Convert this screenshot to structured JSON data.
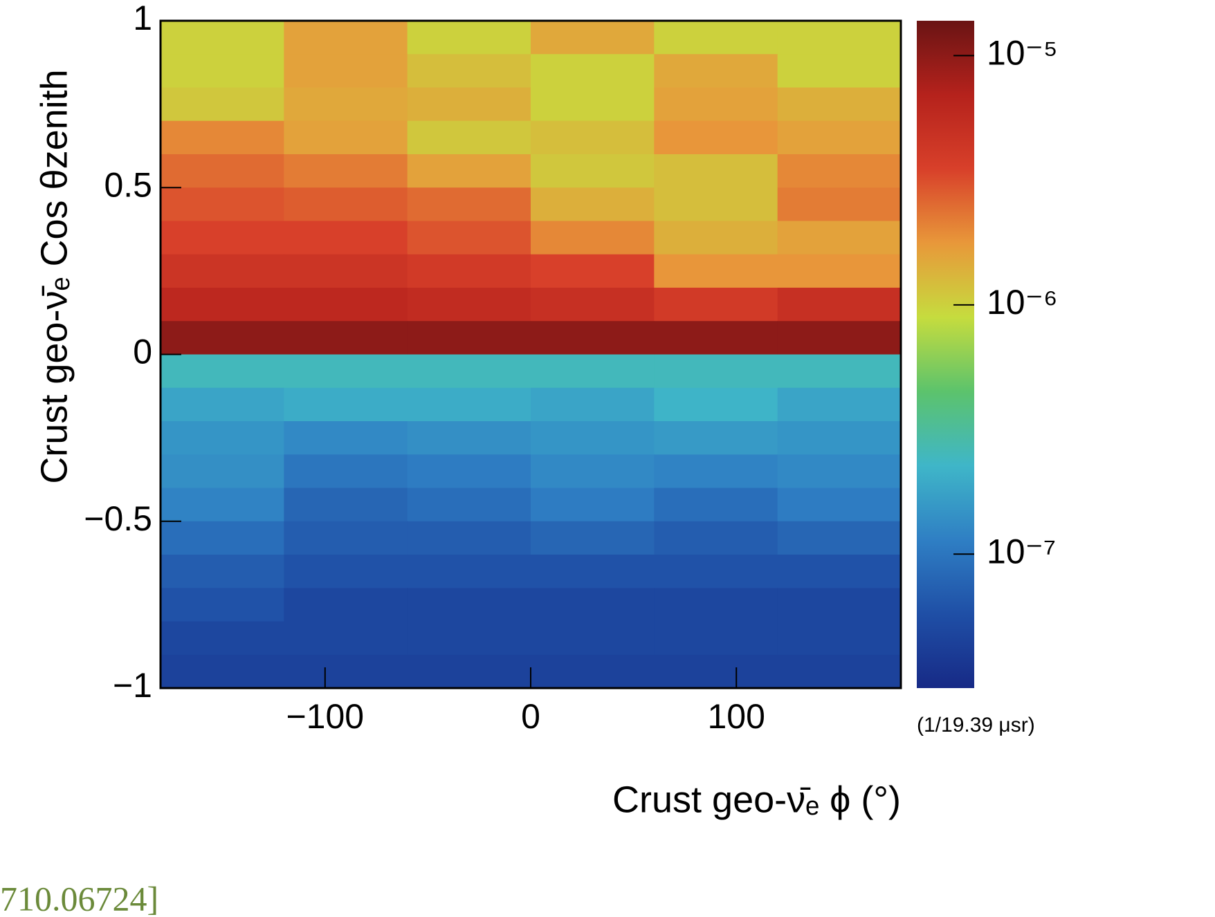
{
  "chart_data": {
    "type": "heatmap",
    "xlabel": "Crust geo-ν̄ₑ ϕ (°)",
    "ylabel": "Crust geo-ν̄ₑ Cos θzenith",
    "zlabel": "(1/19.39 μsr)",
    "annotation": "710.06724]",
    "xlim": [
      -180,
      180
    ],
    "xticks": [
      {
        "value": -100,
        "label": "−100"
      },
      0,
      100
    ],
    "ylim": [
      -1,
      1
    ],
    "yticks": [
      {
        "value": -1,
        "label": "−1"
      },
      {
        "value": -0.5,
        "label": "−0.5"
      },
      0,
      0.5,
      1
    ],
    "zlim": [
      2.9e-08,
      1.38e-05
    ],
    "zscale": "log",
    "zticks": [
      {
        "value": 1e-07,
        "label": "10⁻⁷"
      },
      {
        "value": 1e-06,
        "label": "10⁻⁶"
      },
      {
        "value": 1e-05,
        "label": "10⁻⁵"
      }
    ],
    "colormap": [
      "#172a86",
      "#1f4fa6",
      "#2f7fc4",
      "#3fb6c8",
      "#5cc36c",
      "#c6dc3e",
      "#e8983a",
      "#d8402a",
      "#b5221c",
      "#6a1414"
    ],
    "xbins": [
      -180,
      -120,
      -60,
      0,
      60,
      120,
      180
    ],
    "ybins": [
      1,
      0.9,
      0.8,
      0.7,
      0.6,
      0.5,
      0.4,
      0.3,
      0.2,
      0.1,
      0,
      -0.1,
      -0.2,
      -0.3,
      -0.4,
      -0.5,
      -0.6,
      -0.7,
      -0.8,
      -0.9,
      -1
    ],
    "z": [
      [
        1e-06,
        1.6e-06,
        1e-06,
        1.5e-06,
        1e-06,
        1e-06
      ],
      [
        1e-06,
        1.6e-06,
        1.2e-06,
        1e-06,
        1.5e-06,
        1e-06
      ],
      [
        1.1e-06,
        1.5e-06,
        1.4e-06,
        1e-06,
        1.6e-06,
        1.4e-06
      ],
      [
        2e-06,
        1.6e-06,
        1.1e-06,
        1.2e-06,
        1.8e-06,
        1.6e-06
      ],
      [
        2.5e-06,
        2.2e-06,
        1.6e-06,
        1.1e-06,
        1.2e-06,
        2e-06
      ],
      [
        3e-06,
        2.8e-06,
        2.5e-06,
        1.4e-06,
        1.2e-06,
        2.2e-06
      ],
      [
        3.5e-06,
        3.5e-06,
        3e-06,
        2e-06,
        1.4e-06,
        1.6e-06
      ],
      [
        4.5e-06,
        4.5e-06,
        4e-06,
        3.5e-06,
        1.8e-06,
        1.8e-06
      ],
      [
        6e-06,
        6e-06,
        5.5e-06,
        5e-06,
        4e-06,
        5e-06
      ],
      [
        1e-05,
        1e-05,
        1e-05,
        1e-05,
        1e-05,
        1e-05
      ],
      [
        2.5e-07,
        2.5e-07,
        2.5e-07,
        2.5e-07,
        2.5e-07,
        2.5e-07
      ],
      [
        1.8e-07,
        2e-07,
        2e-07,
        1.8e-07,
        2.2e-07,
        1.8e-07
      ],
      [
        1.5e-07,
        1.3e-07,
        1.4e-07,
        1.5e-07,
        1.6e-07,
        1.5e-07
      ],
      [
        1.4e-07,
        1e-07,
        1.1e-07,
        1.3e-07,
        1.2e-07,
        1.3e-07
      ],
      [
        1.2e-07,
        8e-08,
        9e-08,
        1.1e-07,
        9e-08,
        1.1e-07
      ],
      [
        9e-08,
        7e-08,
        7e-08,
        8e-08,
        7e-08,
        8e-08
      ],
      [
        7e-08,
        6e-08,
        6e-08,
        6e-08,
        6e-08,
        6e-08
      ],
      [
        6e-08,
        5e-08,
        5e-08,
        5e-08,
        5e-08,
        5e-08
      ],
      [
        5e-08,
        5e-08,
        5e-08,
        5e-08,
        5e-08,
        5e-08
      ],
      [
        4.5e-08,
        4.5e-08,
        4.5e-08,
        4.5e-08,
        4.5e-08,
        4.5e-08
      ]
    ]
  }
}
